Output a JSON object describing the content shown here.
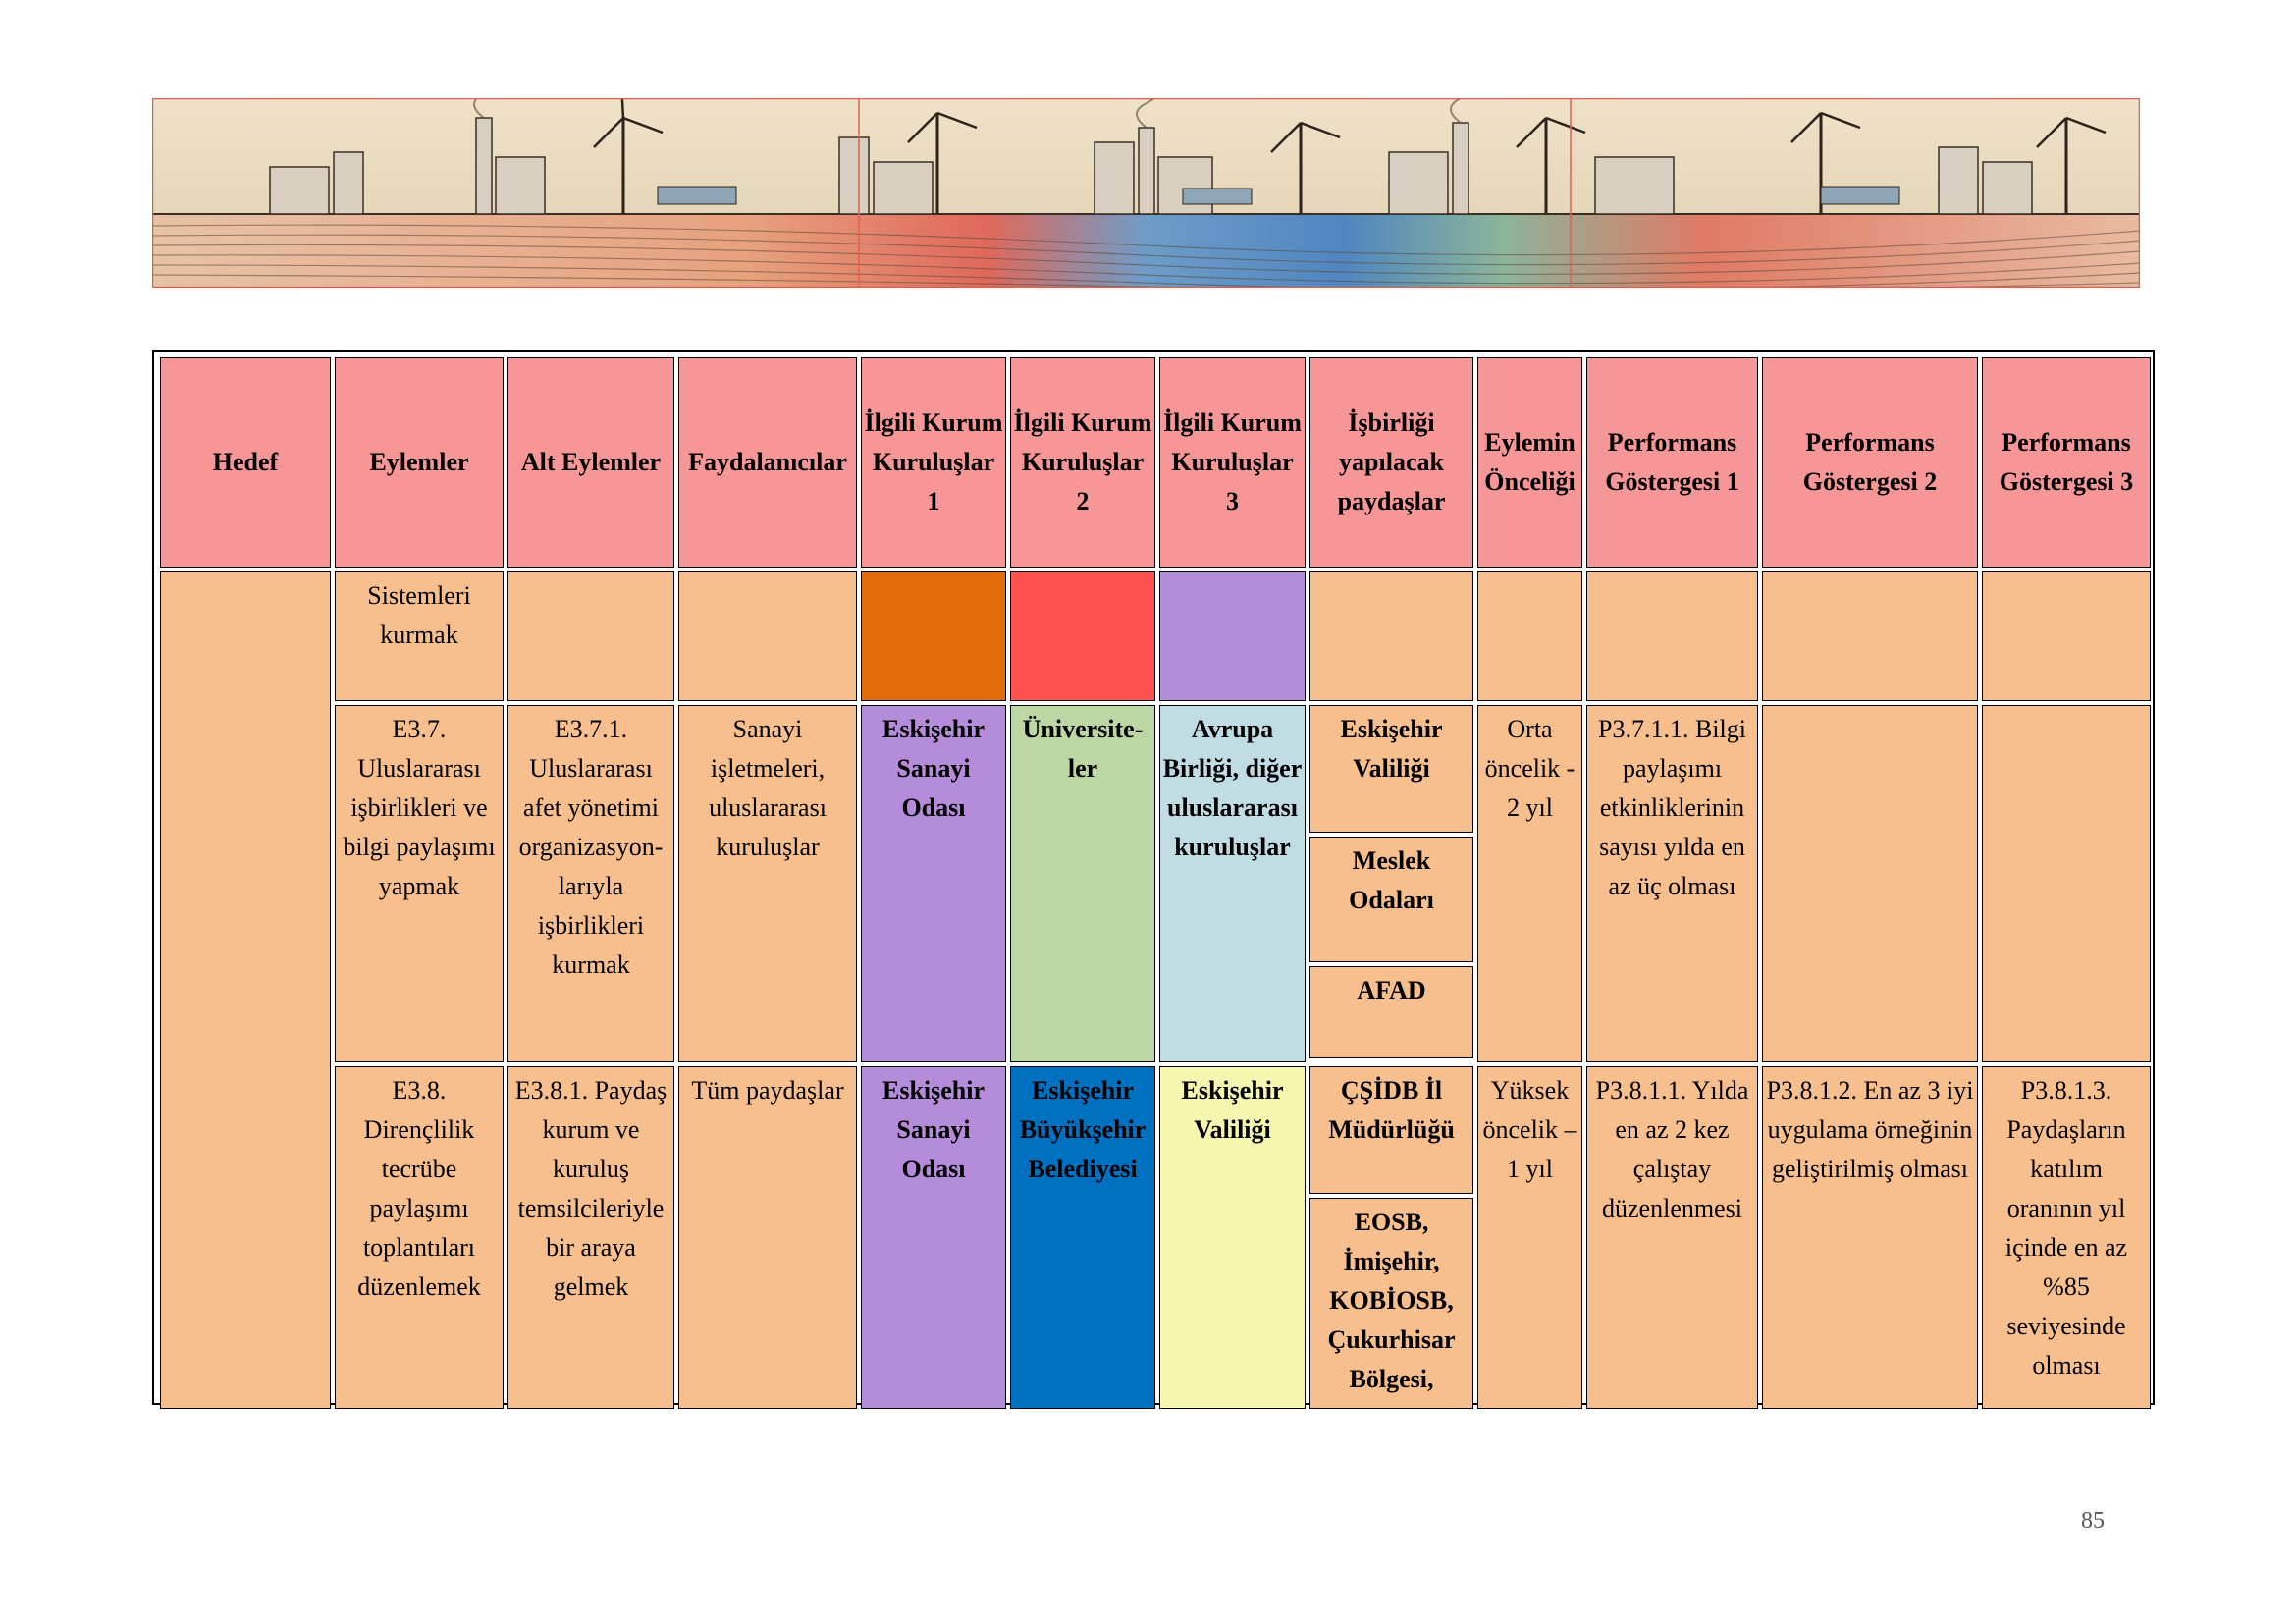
{
  "header_image": "wind-turbines-factories-illustration",
  "table": {
    "headers": {
      "hedef": "Hedef",
      "eylemler": "Eylemler",
      "alt_eylemler": "Alt Eylemler",
      "faydalanicilar": "Faydalanıcılar",
      "kurum1": "İlgili Kurum Kuruluşlar 1",
      "kurum2": "İlgili Kurum Kuruluşlar 2",
      "kurum3": "İlgili Kurum Kuruluşlar 3",
      "isbirligi": "İşbirliği yapılacak paydaşlar",
      "oncelik": "Eylemin Önceliği",
      "pg1": "Performans Göstergesi 1",
      "pg2": "Performans Göstergesi 2",
      "pg3": "Performans Göstergesi 3"
    },
    "row0": {
      "eylem": "Sistemleri kurmak"
    },
    "row1": {
      "eylem": "E3.7. Uluslararası işbirlikleri ve bilgi paylaşımı yapmak",
      "alt_eylem": "E3.7.1. Uluslararası afet yönetimi organizasyon-larıyla işbirlikleri kurmak",
      "faydalanicilar": "Sanayi işletmeleri, uluslararası kuruluşlar",
      "kurum1": "Eskişehir Sanayi Odası",
      "kurum2": "Üniversite-ler",
      "kurum3": "Avrupa Birliği, diğer uluslararası kuruluşlar",
      "paydas1": "Eskişehir Valiliği",
      "paydas2": "Meslek Odaları",
      "paydas3": "AFAD",
      "oncelik": "Orta öncelik - 2 yıl",
      "pg1": "P3.7.1.1. Bilgi paylaşımı etkinliklerinin sayısı yılda en az üç olması"
    },
    "row2": {
      "eylem": "E3.8. Dirençlilik tecrübe paylaşımı toplantıları düzenlemek",
      "alt_eylem": "E3.8.1. Paydaş kurum ve kuruluş temsilcileriyle bir araya gelmek",
      "faydalanicilar": "Tüm paydaşlar",
      "kurum1": "Eskişehir Sanayi Odası",
      "kurum2": "Eskişehir Büyükşehir Belediyesi",
      "kurum3": "Eskişehir Valiliği",
      "paydas1": "ÇŞİDB İl Müdürlüğü",
      "paydas2": "EOSB, İmişehir, KOBİOSB, Çukurhisar Bölgesi,",
      "oncelik": "Yüksek öncelik – 1 yıl",
      "pg1": "P3.8.1.1. Yılda en az 2 kez çalıştay düzenlenmesi",
      "pg2": "P3.8.1.2. En az 3 iyi uygulama örneğinin geliştirilmiş olması",
      "pg3": "P3.8.1.3. Paydaşların katılım oranının yıl içinde en az %85 seviyesinde olması"
    }
  },
  "colors": {
    "header": "#f69696",
    "body": "#f8bf8e",
    "orange": "#e36c0a",
    "red": "#ff5050",
    "purple": "#b48cd9",
    "green": "#bcd6a4",
    "light_blue": "#c0dde4",
    "blue": "#0070c0",
    "yellow": "#f5f6b0"
  },
  "page_number": "85"
}
